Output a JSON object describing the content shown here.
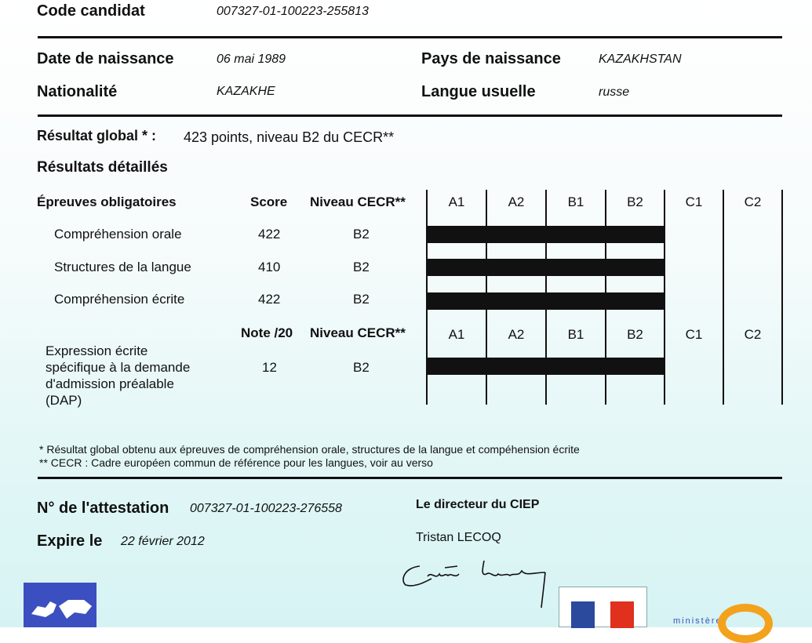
{
  "candidate": {
    "code_label": "Code candidat",
    "code_value": "007327-01-100223-255813",
    "birth_label": "Date de naissance",
    "birth_value": "06 mai 1989",
    "country_label": "Pays de naissance",
    "country_value": "KAZAKHSTAN",
    "nationality_label": "Nationalité",
    "nationality_value": "KAZAKHE",
    "language_label": "Langue usuelle",
    "language_value": "russe"
  },
  "global": {
    "label": "Résultat global * :",
    "value": "423 points, niveau B2 du CECR**"
  },
  "detailed_title": "Résultats détaillés",
  "levels": [
    "A1",
    "A2",
    "B1",
    "B2",
    "C1",
    "C2"
  ],
  "mandatory": {
    "header": "Épreuves obligatoires",
    "score_header": "Score",
    "level_header": "Niveau CECR**",
    "rows": [
      {
        "name": "Compréhension orale",
        "score": "422",
        "level": "B2"
      },
      {
        "name": "Structures de la langue",
        "score": "410",
        "level": "B2"
      },
      {
        "name": "Compréhension écrite",
        "score": "422",
        "level": "B2"
      }
    ]
  },
  "dap": {
    "note_header": "Note /20",
    "level_header": "Niveau CECR**",
    "name_lines": [
      "Expression écrite",
      "spécifique à la demande",
      "d'admission préalable",
      "(DAP)"
    ],
    "note": "12",
    "level": "B2"
  },
  "footnotes": [
    "* Résultat global obtenu aux épreuves de compréhension orale, structures de la langue et compéhension écrite",
    "** CECR : Cadre européen commun de référence pour les langues, voir au verso"
  ],
  "attestation": {
    "label": "N° de l'attestation",
    "value": "007327-01-100223-276558",
    "expiry_label": "Expire le",
    "expiry_value": "22 février 2012"
  },
  "director": {
    "title": "Le directeur du CIEP",
    "name": "Tristan LECOQ",
    "signature": "Tristan Lecoq"
  },
  "logos": {
    "ministry_text": "ministère"
  },
  "colors": {
    "flag_blue": "#2b4a9e",
    "flag_red": "#e0301e",
    "ciep_blue": "#3b4fc0",
    "accent_orange": "#f3a21c"
  }
}
